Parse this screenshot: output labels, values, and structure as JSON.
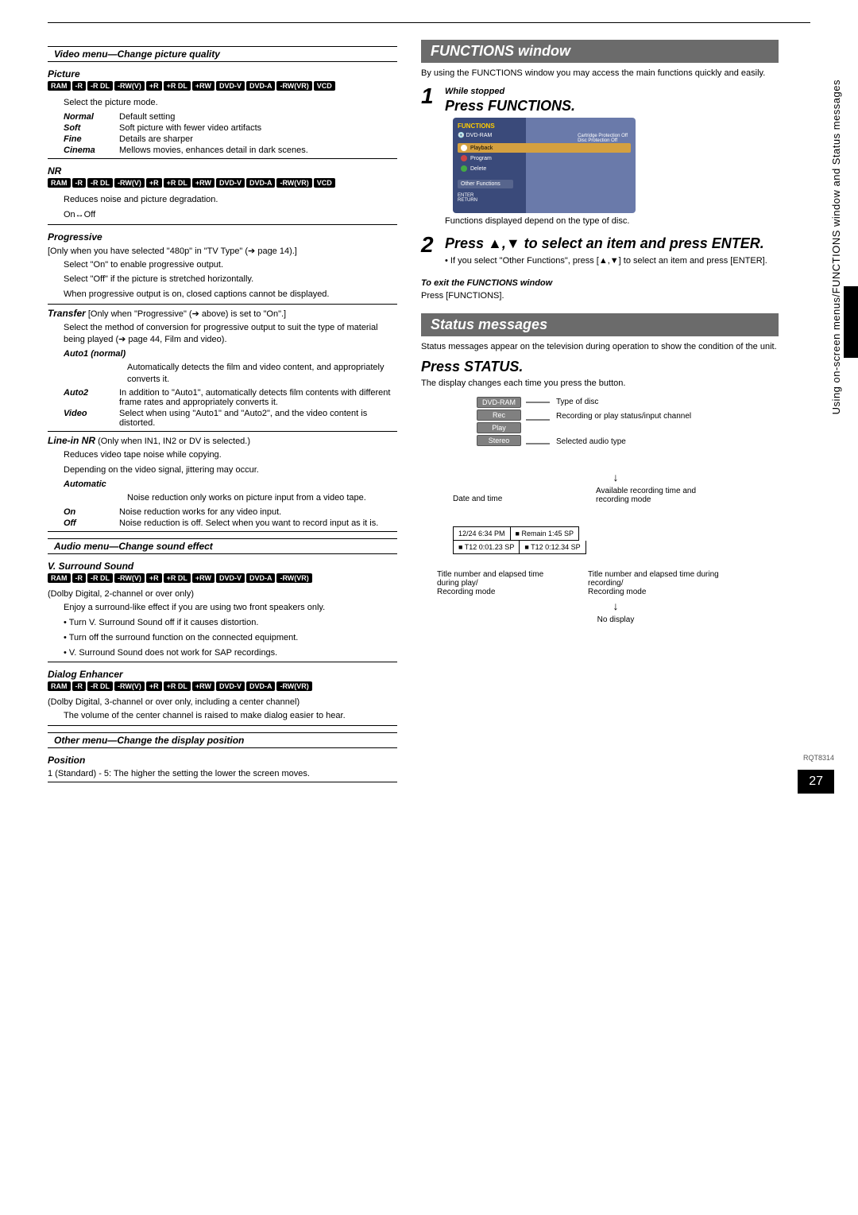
{
  "left": {
    "video_menu_title": "Video menu—Change picture quality",
    "picture": {
      "label": "Picture",
      "badges": [
        "RAM",
        "-R",
        "-R DL",
        "-RW(V)",
        "+R",
        "+R DL",
        "+RW",
        "DVD-V",
        "DVD-A",
        "-RW(VR)",
        "VCD"
      ],
      "intro": "Select the picture mode.",
      "modes": [
        {
          "name": "Normal",
          "desc": "Default setting"
        },
        {
          "name": "Soft",
          "desc": "Soft picture with fewer video artifacts"
        },
        {
          "name": "Fine",
          "desc": "Details are sharper"
        },
        {
          "name": "Cinema",
          "desc": "Mellows movies, enhances detail in dark scenes."
        }
      ]
    },
    "nr": {
      "label": "NR",
      "badges": [
        "RAM",
        "-R",
        "-R DL",
        "-RW(V)",
        "+R",
        "+R DL",
        "+RW",
        "DVD-V",
        "DVD-A",
        "-RW(VR)",
        "VCD"
      ],
      "desc": "Reduces noise and picture degradation.",
      "toggle": "On↔Off"
    },
    "progressive": {
      "label": "Progressive",
      "cond": "[Only when you have selected \"480p\" in \"TV Type\" (➔ page 14).]",
      "lines": [
        "Select \"On\" to enable progressive output.",
        "Select \"Off\" if the picture is stretched horizontally.",
        "When progressive output is on, closed captions cannot be displayed."
      ]
    },
    "transfer": {
      "label": "Transfer",
      "cond": "[Only when \"Progressive\" (➔ above) is set to \"On\".]",
      "desc": "Select the method of conversion for progressive output to suit the type of material being played (➔ page 44, Film and video).",
      "auto1_label": "Auto1 (normal)",
      "auto1_desc": "Automatically detects the film and video content, and appropriately converts it.",
      "rows": [
        {
          "name": "Auto2",
          "desc": "In addition to \"Auto1\", automatically detects film contents with different frame rates and appropriately converts it."
        },
        {
          "name": "Video",
          "desc": "Select when using \"Auto1\" and \"Auto2\", and the video content is distorted."
        }
      ]
    },
    "linein": {
      "label": "Line-in NR",
      "cond": "(Only when IN1, IN2 or DV is selected.)",
      "line1": "Reduces video tape noise while copying.",
      "line2": "Depending on the video signal, jittering may occur.",
      "auto_label": "Automatic",
      "auto_desc": "Noise reduction only works on picture input from a video tape.",
      "rows": [
        {
          "name": "On",
          "desc": "Noise reduction works for any video input."
        },
        {
          "name": "Off",
          "desc": "Noise reduction is off. Select when you want to record input as it is."
        }
      ]
    },
    "audio_menu_title": "Audio menu—Change sound effect",
    "vsurround": {
      "label": "V. Surround Sound",
      "badges": [
        "RAM",
        "-R",
        "-R DL",
        "-RW(V)",
        "+R",
        "+R DL",
        "+RW",
        "DVD-V",
        "DVD-A",
        "-RW(VR)"
      ],
      "cond": "(Dolby Digital, 2-channel or over only)",
      "lines": [
        "Enjoy a surround-like effect if you are using two front speakers only.",
        "• Turn V. Surround Sound off if it causes distortion.",
        "• Turn off the surround function on the connected equipment.",
        "• V. Surround Sound does not work for SAP recordings."
      ]
    },
    "dialog": {
      "label": "Dialog Enhancer",
      "badges": [
        "RAM",
        "-R",
        "-R DL",
        "-RW(V)",
        "+R",
        "+R DL",
        "+RW",
        "DVD-V",
        "DVD-A",
        "-RW(VR)"
      ],
      "cond": "(Dolby Digital, 3-channel or over only, including a center channel)",
      "desc": "The volume of the center channel is raised to make dialog easier to hear."
    },
    "other_menu_title": "Other menu—Change the display position",
    "position": {
      "label": "Position",
      "desc": "1 (Standard) - 5: The higher the setting the lower the screen moves."
    }
  },
  "right": {
    "functions_header": "FUNCTIONS window",
    "functions_intro": "By using the FUNCTIONS window you may access the main functions quickly and easily.",
    "step1_small": "While stopped",
    "step1_big": "Press FUNCTIONS.",
    "func_window": {
      "title": "FUNCTIONS",
      "disc": "DVD-RAM",
      "items": [
        "Playback",
        "Program",
        "Delete"
      ],
      "other": "Other Functions",
      "return": "ENTER\nRETURN",
      "right_lines": [
        "Cartridge Protection Off",
        "Disc Protection Off"
      ]
    },
    "func_note": "Functions displayed depend on the type of disc.",
    "step2_big": "Press ▲,▼ to select an item and press ENTER.",
    "step2_note": "• If you select \"Other Functions\", press [▲,▼] to select an item and press [ENTER].",
    "exit_header": "To exit the FUNCTIONS window",
    "exit_text": "Press [FUNCTIONS].",
    "status_header": "Status messages",
    "status_intro": "Status messages appear on the television during operation to show the condition of the unit.",
    "press_status": "Press STATUS.",
    "status_desc": "The display changes each time you press the button.",
    "diagram": {
      "chips": [
        "DVD-RAM",
        "Rec",
        "Play",
        "Stereo"
      ],
      "chip_labels": [
        "Type of disc",
        "Recording or play status/input channel",
        "Selected audio type"
      ],
      "date_time_label": "Date and time",
      "avail_label": "Available recording time and recording mode",
      "box_line1_left": "12/24  6:34 PM",
      "box_line1_right": "■ Remain   1:45  SP",
      "box_line2_left": "■ T12   0:01.23  SP",
      "box_line2_right": "■ T12   0:12.34  SP",
      "bottom_left": "Title number and elapsed time during play/\nRecording mode",
      "bottom_right": "Title number and elapsed time during recording/\nRecording mode",
      "no_display": "No display"
    }
  },
  "side_text": "Using on-screen menus/FUNCTIONS window and Status messages",
  "doc_code": "RQT8314",
  "page_num": "27"
}
